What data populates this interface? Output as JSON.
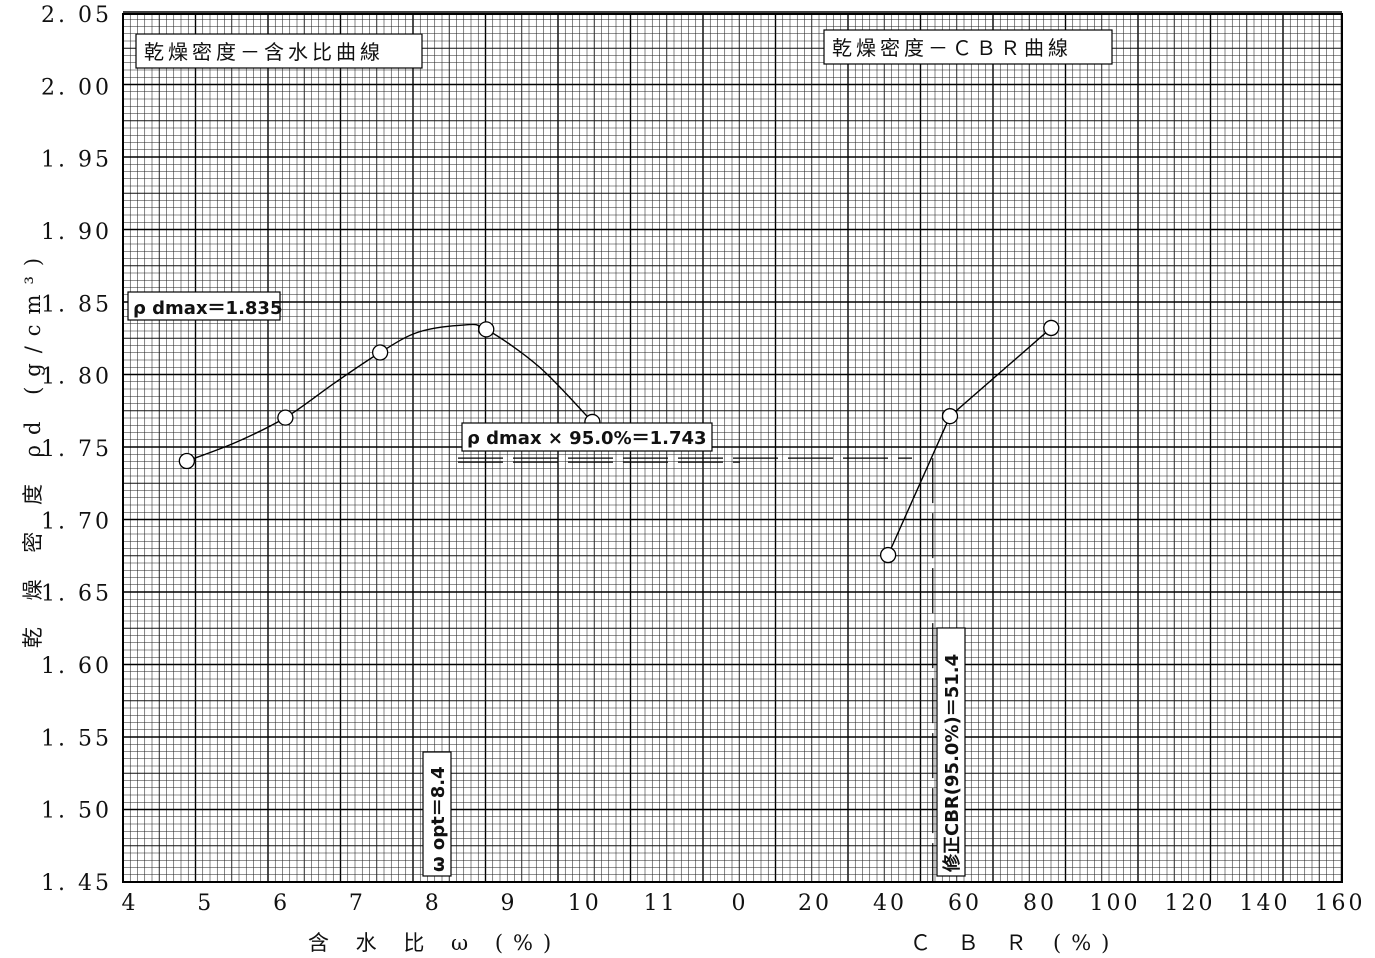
{
  "chart_data": [
    {
      "type": "line",
      "panel": "left",
      "title": "乾燥密度－含水比曲線",
      "xlabel": "含 水 比 ω (%)",
      "ylabel": "乾 燥 密 度 ρd (g/cm³)",
      "x_ticks": [
        "4",
        "5",
        "6",
        "7",
        "8",
        "9",
        "10",
        "11"
      ],
      "y_ticks": [
        "1.45",
        "1.50",
        "1.55",
        "1.60",
        "1.65",
        "1.70",
        "1.75",
        "1.80",
        "1.85",
        "1.90",
        "1.95",
        "2.00",
        "2.05"
      ],
      "xlim": [
        4,
        11.8
      ],
      "ylim": [
        1.45,
        2.05
      ],
      "grid": true,
      "x": [
        4.75,
        6.05,
        7.3,
        8.7,
        10.1
      ],
      "y": [
        1.741,
        1.771,
        1.816,
        1.832,
        1.768
      ],
      "curve_x": [
        4.75,
        5.4,
        6.05,
        6.7,
        7.3,
        7.8,
        8.4,
        8.7,
        9.4,
        10.1
      ],
      "curve_y": [
        1.741,
        1.754,
        1.771,
        1.795,
        1.816,
        1.83,
        1.835,
        1.832,
        1.806,
        1.768
      ],
      "annotations": {
        "rho_dmax": "ρ dmax＝1.835",
        "rho_95": "ρ dmax × 95.0%＝1.743",
        "w_opt": "ω opt＝8.4"
      },
      "rho_dmax_value": 1.835,
      "rho_95_value": 1.743,
      "w_opt_value": 8.4
    },
    {
      "type": "line",
      "panel": "right",
      "title": "乾燥密度－ＣＢＲ曲線",
      "xlabel": "Ｃ Ｂ Ｒ (%)",
      "x_ticks": [
        "0",
        "20",
        "40",
        "60",
        "80",
        "100",
        "120",
        "140",
        "160"
      ],
      "xlim": [
        0,
        160
      ],
      "ylim": [
        1.45,
        2.05
      ],
      "grid": true,
      "x": [
        39.5,
        56.0,
        83.0
      ],
      "y": [
        1.676,
        1.772,
        1.833
      ],
      "annotations": {
        "cbr": "修正CBR(95.0%)＝51.4"
      },
      "cbr_value": 51.4
    }
  ]
}
